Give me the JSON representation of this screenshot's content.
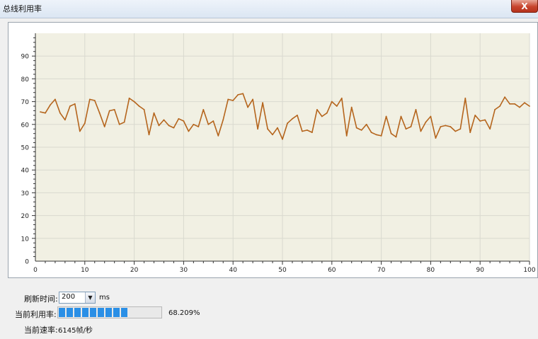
{
  "window": {
    "title": "总线利用率",
    "close_label": "X"
  },
  "controls": {
    "refresh_label": "刷新时间:",
    "refresh_value": "200",
    "refresh_unit": "ms",
    "utilization_label": "当前利用率:",
    "utilization_text": "68.209%",
    "utilization_fraction": 0.68209,
    "rate_label": "当前速率:",
    "rate_text": "6145帧/秒"
  },
  "colors": {
    "line": "#b5651d",
    "plot_bg": "#f1f0e3",
    "progress": "#2a8fe6"
  },
  "chart_data": {
    "type": "line",
    "xlim": [
      0,
      100
    ],
    "ylim": [
      0,
      100
    ],
    "x_ticks": [
      0,
      10,
      20,
      30,
      40,
      50,
      60,
      70,
      80,
      90,
      100
    ],
    "y_ticks": [
      0,
      10,
      20,
      30,
      40,
      50,
      60,
      70,
      80,
      90
    ],
    "grid": true,
    "series": [
      {
        "values": [
          [
            1,
            65.5
          ],
          [
            2,
            65
          ],
          [
            3,
            68.5
          ],
          [
            4,
            71
          ],
          [
            5,
            65
          ],
          [
            6,
            62
          ],
          [
            7,
            68
          ],
          [
            8,
            69
          ],
          [
            9,
            57
          ],
          [
            10,
            60.5
          ],
          [
            11,
            71
          ],
          [
            12,
            70.5
          ],
          [
            13,
            65
          ],
          [
            14,
            59
          ],
          [
            15,
            66
          ],
          [
            16,
            66.5
          ],
          [
            17,
            60
          ],
          [
            18,
            61
          ],
          [
            19,
            71.5
          ],
          [
            20,
            70
          ],
          [
            21,
            68
          ],
          [
            22,
            66.5
          ],
          [
            23,
            55.5
          ],
          [
            24,
            65
          ],
          [
            25,
            59.5
          ],
          [
            26,
            62
          ],
          [
            27,
            59.5
          ],
          [
            28,
            58.5
          ],
          [
            29,
            62.5
          ],
          [
            30,
            61.5
          ],
          [
            31,
            57
          ],
          [
            32,
            60
          ],
          [
            33,
            59
          ],
          [
            34,
            66.5
          ],
          [
            35,
            60
          ],
          [
            36,
            61.5
          ],
          [
            37,
            55
          ],
          [
            38,
            62
          ],
          [
            39,
            71
          ],
          [
            40,
            70.5
          ],
          [
            41,
            73
          ],
          [
            42,
            73.5
          ],
          [
            43,
            67.5
          ],
          [
            44,
            71
          ],
          [
            45,
            58
          ],
          [
            46,
            69.5
          ],
          [
            47,
            58
          ],
          [
            48,
            55.5
          ],
          [
            49,
            58.5
          ],
          [
            50,
            53.5
          ],
          [
            51,
            60.5
          ],
          [
            52,
            62.5
          ],
          [
            53,
            64
          ],
          [
            54,
            57
          ],
          [
            55,
            57.5
          ],
          [
            56,
            56.5
          ],
          [
            57,
            66.5
          ],
          [
            58,
            63.5
          ],
          [
            59,
            65
          ],
          [
            60,
            70
          ],
          [
            61,
            68
          ],
          [
            62,
            71.5
          ],
          [
            63,
            55
          ],
          [
            64,
            67.5
          ],
          [
            65,
            58.5
          ],
          [
            66,
            57.5
          ],
          [
            67,
            60
          ],
          [
            68,
            56.5
          ],
          [
            69,
            55.5
          ],
          [
            70,
            55
          ],
          [
            71,
            63.5
          ],
          [
            72,
            56
          ],
          [
            73,
            54.5
          ],
          [
            74,
            63.5
          ],
          [
            75,
            58
          ],
          [
            76,
            59
          ],
          [
            77,
            66.5
          ],
          [
            78,
            57
          ],
          [
            79,
            61
          ],
          [
            80,
            63.5
          ],
          [
            81,
            54
          ],
          [
            82,
            59
          ],
          [
            83,
            59.5
          ],
          [
            84,
            59
          ],
          [
            85,
            57
          ],
          [
            86,
            58
          ],
          [
            87,
            71.5
          ],
          [
            88,
            56.5
          ],
          [
            89,
            64
          ],
          [
            90,
            61.5
          ],
          [
            91,
            62
          ],
          [
            92,
            58
          ],
          [
            93,
            66.5
          ],
          [
            94,
            68
          ],
          [
            95,
            72
          ],
          [
            96,
            69
          ],
          [
            97,
            69
          ],
          [
            98,
            67.5
          ],
          [
            99,
            69.5
          ],
          [
            100,
            68
          ]
        ]
      }
    ]
  }
}
